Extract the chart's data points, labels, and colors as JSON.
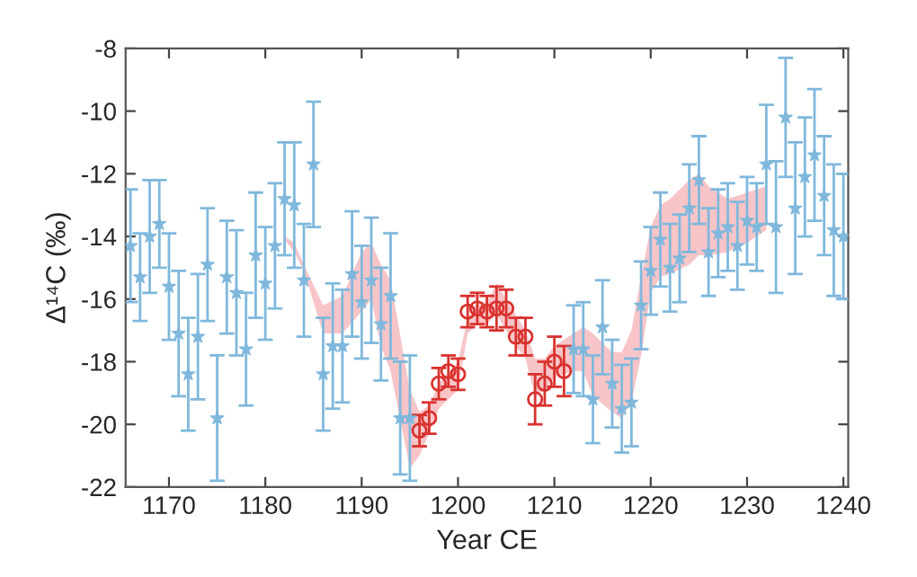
{
  "chart_data": {
    "type": "scatter",
    "xlabel": "Year CE",
    "ylabel": "Δ¹⁴C (‰)",
    "xlim": [
      1165.5,
      1240.5
    ],
    "xticks": [
      1170,
      1180,
      1190,
      1200,
      1210,
      1220,
      1230,
      1240
    ],
    "ylim": [
      -22,
      -8
    ],
    "yticks": [
      -22,
      -20,
      -18,
      -16,
      -14,
      -12,
      -10,
      -8
    ],
    "grid": false,
    "series": [
      {
        "type": "line",
        "color": "#f7c5c8",
        "x": [
          1182,
          1183,
          1184,
          1186,
          1188,
          1190,
          1191,
          1192,
          1193,
          1195,
          1196,
          1197,
          1198,
          1200,
          1201,
          1202,
          1203,
          1204,
          1206,
          1207,
          1208,
          1209,
          1210,
          1212,
          1213,
          1214,
          1216,
          1217,
          1218,
          1219,
          1220,
          1221,
          1222,
          1224,
          1225,
          1226,
          1228,
          1230,
          1232
        ],
        "values": [
          null,
          null,
          null,
          null,
          null,
          null,
          null,
          null,
          null,
          null,
          null,
          null,
          null,
          null,
          null,
          null,
          null,
          null,
          null,
          null,
          null,
          null,
          null,
          null,
          null,
          null,
          null,
          null,
          null,
          null,
          null,
          null,
          null,
          null,
          null,
          null,
          null,
          null,
          null
        ],
        "upper": [
          -14.0,
          -14.2,
          -14.9,
          -16.2,
          -15.9,
          -14.5,
          -14.2,
          -14.9,
          -15.4,
          -18.9,
          -19.6,
          -19.4,
          -18.7,
          -18.0,
          -16.6,
          -16.1,
          -16.1,
          -15.5,
          -16.5,
          -17.0,
          -17.9,
          -17.9,
          -17.5,
          -17.1,
          -16.9,
          -17.1,
          -17.7,
          -17.7,
          -17.0,
          -15.3,
          -13.7,
          -13.0,
          -12.8,
          -12.2,
          -12.0,
          -12.4,
          -12.8,
          -12.6,
          -12.4
        ],
        "lower": [
          -14.1,
          -14.5,
          -15.1,
          -17.1,
          -17.1,
          -16.4,
          -16.0,
          -17.5,
          -18.3,
          -21.4,
          -21.0,
          -20.3,
          -19.5,
          -18.9,
          -17.1,
          -16.8,
          -16.8,
          -16.5,
          -17.5,
          -17.9,
          -19.1,
          -18.9,
          -18.5,
          -18.3,
          -18.3,
          -19.1,
          -19.6,
          -19.8,
          -19.3,
          -17.8,
          -15.8,
          -15.3,
          -15.2,
          -14.9,
          -14.6,
          -14.6,
          -14.5,
          -14.2,
          -13.8
        ]
      },
      {
        "color": "#7fb8dc",
        "marker": "star",
        "x": [
          1166,
          1167,
          1168,
          1169,
          1170,
          1171,
          1172,
          1173,
          1174,
          1175,
          1176,
          1177,
          1178,
          1179,
          1180,
          1181,
          1182,
          1183,
          1184,
          1185,
          1186,
          1187,
          1188,
          1189,
          1190,
          1191,
          1192,
          1193,
          1194,
          1195,
          1212,
          1213,
          1214,
          1215,
          1216,
          1217,
          1218,
          1219,
          1220,
          1221,
          1222,
          1223,
          1224,
          1225,
          1226,
          1227,
          1228,
          1229,
          1230,
          1231,
          1232,
          1233,
          1234,
          1235,
          1236,
          1237,
          1238,
          1239,
          1240
        ],
        "values": [
          -14.3,
          -15.3,
          -14.0,
          -13.6,
          -15.6,
          -17.1,
          -18.4,
          -17.2,
          -14.9,
          -19.8,
          -15.3,
          -15.8,
          -17.6,
          -14.6,
          -15.5,
          -14.3,
          -12.8,
          -13.0,
          -15.4,
          -11.7,
          -18.4,
          -17.5,
          -17.5,
          -15.2,
          -16.1,
          -15.4,
          -16.8,
          -15.9,
          -19.8,
          -19.8,
          -17.6,
          -17.6,
          -19.2,
          -16.9,
          -18.7,
          -19.5,
          -19.3,
          -16.2,
          -15.1,
          -14.1,
          -15.0,
          -14.7,
          -13.1,
          -12.2,
          -14.5,
          -13.9,
          -13.7,
          -14.3,
          -13.5,
          -13.7,
          -11.7,
          -13.7,
          -10.2,
          -13.1,
          -12.1,
          -11.4,
          -12.7,
          -13.8,
          -14.0
        ],
        "errors": [
          1.8,
          1.4,
          1.8,
          1.4,
          1.7,
          2.0,
          1.8,
          2.0,
          1.8,
          2.0,
          1.8,
          2.0,
          1.8,
          2.0,
          1.8,
          2.0,
          1.8,
          2.0,
          1.8,
          2.0,
          1.8,
          2.0,
          1.8,
          2.0,
          1.8,
          2.0,
          1.8,
          2.0,
          1.8,
          2.0,
          1.4,
          1.5,
          1.4,
          1.5,
          1.4,
          1.4,
          1.4,
          1.4,
          1.4,
          1.5,
          1.4,
          1.4,
          1.4,
          1.4,
          1.4,
          1.4,
          1.4,
          1.4,
          1.4,
          1.4,
          1.9,
          2.1,
          1.9,
          2.1,
          1.9,
          2.1,
          1.9,
          2.1,
          2.0
        ]
      },
      {
        "color": "#d9322e",
        "marker": "circle",
        "x": [
          1196,
          1197,
          1198,
          1199,
          1200,
          1201,
          1202,
          1203,
          1204,
          1205,
          1206,
          1207,
          1208,
          1209,
          1210,
          1211
        ],
        "values": [
          -20.2,
          -19.8,
          -18.7,
          -18.3,
          -18.4,
          -16.4,
          -16.3,
          -16.4,
          -16.3,
          -16.3,
          -17.2,
          -17.2,
          -19.2,
          -18.7,
          -18.0,
          -18.3
        ],
        "errors": [
          0.5,
          0.5,
          0.5,
          0.5,
          0.5,
          0.5,
          0.5,
          0.5,
          0.7,
          0.6,
          0.6,
          0.6,
          0.8,
          0.7,
          0.8,
          0.8
        ]
      }
    ]
  }
}
